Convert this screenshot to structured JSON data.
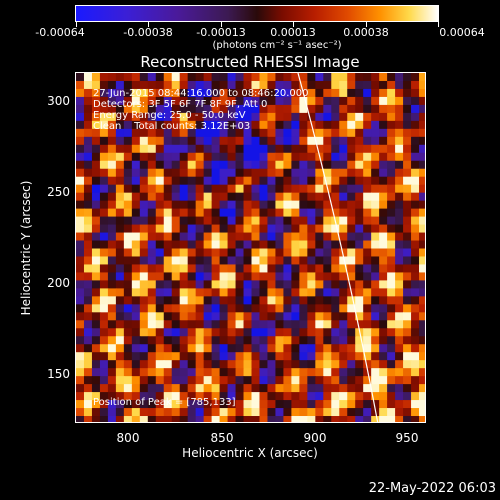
{
  "colorbar": {
    "tick_labels": [
      "-0.00064",
      "-0.00038",
      "-0.00013",
      "0.00013",
      "0.00038",
      "0.00064"
    ],
    "units": "(photons cm⁻² s⁻¹ asec⁻²)"
  },
  "image": {
    "title": "Reconstructed RHESSI Image",
    "info": {
      "time_range": "27-Jun-2015 08:44:16.000 to 08:46:20.000",
      "detectors": "Detectors: 3F 5F 6F 7F 8F 9F, Att 0",
      "energy": "Energy Range: 25.0 - 50.0 keV",
      "clean": "Clean    Total counts: 3.12E+03"
    },
    "peak": "Position of Peak = [785,133]",
    "x_ticks": [
      "800",
      "850",
      "900",
      "950"
    ],
    "y_ticks": [
      "300",
      "250",
      "200",
      "150"
    ],
    "xlabel": "Heliocentric X (arcsec)",
    "ylabel": "Heliocentric Y (arcsec)"
  },
  "footer": {
    "date": "22-May-2022 06:03"
  },
  "colors": {
    "background": "#000000",
    "axes": "#ffffff"
  }
}
